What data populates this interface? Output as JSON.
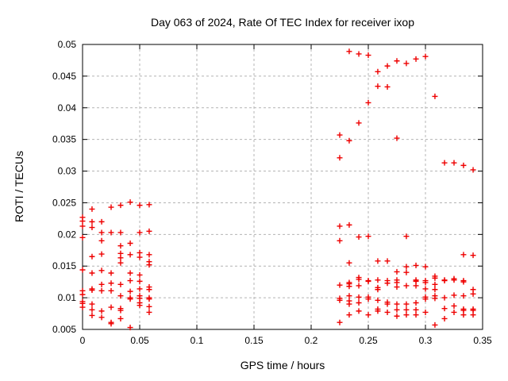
{
  "window": {
    "background": "#ffffff"
  },
  "chart_data": {
    "type": "scatter",
    "title": "Day 063 of 2024, Rate Of TEC Index for receiver ixop",
    "xlabel": "GPS time / hours",
    "ylabel": "ROTI / TECUs",
    "xlim": [
      0,
      0.35
    ],
    "ylim": [
      0.005,
      0.05
    ],
    "xticks": [
      0,
      0.05,
      0.1,
      0.15,
      0.2,
      0.25,
      0.3,
      0.35
    ],
    "xtick_labels": [
      "0",
      "0.05",
      "0.1",
      "0.15",
      "0.2",
      "0.25",
      "0.3",
      "0.35"
    ],
    "yticks": [
      0.005,
      0.01,
      0.015,
      0.02,
      0.025,
      0.03,
      0.035,
      0.04,
      0.045,
      0.05
    ],
    "ytick_labels": [
      "0.005",
      "0.01",
      "0.015",
      "0.02",
      "0.025",
      "0.03",
      "0.035",
      "0.04",
      "0.045",
      "0.05"
    ],
    "grid": true,
    "grid_color": "#b4b4b4",
    "frame_color": "#000000",
    "marker": {
      "shape": "plus",
      "color": "#ee0000",
      "size": 7,
      "stroke_width": 1.4
    },
    "series": [
      {
        "name": "ROTI",
        "points": [
          [
            0,
            0.0227
          ],
          [
            0,
            0.0221
          ],
          [
            0,
            0.0213
          ],
          [
            0,
            0.0195
          ],
          [
            0,
            0.0144
          ],
          [
            0,
            0.0111
          ],
          [
            0,
            0.0105
          ],
          [
            0,
            0.0094
          ],
          [
            0,
            0.0091
          ],
          [
            0,
            0.0085
          ],
          [
            0.0083,
            0.024
          ],
          [
            0.0083,
            0.022
          ],
          [
            0.0083,
            0.0211
          ],
          [
            0.0083,
            0.0165
          ],
          [
            0.0083,
            0.0139
          ],
          [
            0.0083,
            0.0114
          ],
          [
            0.0083,
            0.0112
          ],
          [
            0.0083,
            0.009
          ],
          [
            0.0083,
            0.0081
          ],
          [
            0.0083,
            0.0072
          ],
          [
            0.0167,
            0.022
          ],
          [
            0.0167,
            0.0203
          ],
          [
            0.0167,
            0.019
          ],
          [
            0.0167,
            0.0169
          ],
          [
            0.0167,
            0.0143
          ],
          [
            0.0167,
            0.0121
          ],
          [
            0.0167,
            0.0111
          ],
          [
            0.0167,
            0.0079
          ],
          [
            0.0167,
            0.0069
          ],
          [
            0.025,
            0.0243
          ],
          [
            0.025,
            0.0203
          ],
          [
            0.025,
            0.0139
          ],
          [
            0.025,
            0.0123
          ],
          [
            0.025,
            0.0111
          ],
          [
            0.025,
            0.0085
          ],
          [
            0.025,
            0.0061
          ],
          [
            0.025,
            0.0059
          ],
          [
            0.0333,
            0.0246
          ],
          [
            0.0333,
            0.0203
          ],
          [
            0.0333,
            0.0182
          ],
          [
            0.0333,
            0.017
          ],
          [
            0.0333,
            0.0163
          ],
          [
            0.0333,
            0.0155
          ],
          [
            0.0333,
            0.0121
          ],
          [
            0.0333,
            0.0103
          ],
          [
            0.0333,
            0.0083
          ],
          [
            0.0333,
            0.008
          ],
          [
            0.0333,
            0.0067
          ],
          [
            0.0417,
            0.0251
          ],
          [
            0.0417,
            0.0186
          ],
          [
            0.0417,
            0.0168
          ],
          [
            0.0417,
            0.0139
          ],
          [
            0.0417,
            0.0127
          ],
          [
            0.0417,
            0.011
          ],
          [
            0.0417,
            0.01
          ],
          [
            0.0417,
            0.0098
          ],
          [
            0.0417,
            0.0053
          ],
          [
            0.05,
            0.0246
          ],
          [
            0.05,
            0.0203
          ],
          [
            0.05,
            0.0171
          ],
          [
            0.05,
            0.0164
          ],
          [
            0.05,
            0.0136
          ],
          [
            0.05,
            0.0126
          ],
          [
            0.05,
            0.0114
          ],
          [
            0.05,
            0.0103
          ],
          [
            0.05,
            0.0099
          ],
          [
            0.05,
            0.0092
          ],
          [
            0.05,
            0.0088
          ],
          [
            0.0583,
            0.0247
          ],
          [
            0.0583,
            0.0205
          ],
          [
            0.0583,
            0.0168
          ],
          [
            0.0583,
            0.0157
          ],
          [
            0.0583,
            0.0152
          ],
          [
            0.0583,
            0.0117
          ],
          [
            0.0583,
            0.0113
          ],
          [
            0.0583,
            0.01
          ],
          [
            0.0583,
            0.0098
          ],
          [
            0.0583,
            0.0086
          ],
          [
            0.0583,
            0.0077
          ],
          [
            0.225,
            0.0357
          ],
          [
            0.225,
            0.0321
          ],
          [
            0.225,
            0.0213
          ],
          [
            0.225,
            0.019
          ],
          [
            0.225,
            0.012
          ],
          [
            0.225,
            0.0099
          ],
          [
            0.225,
            0.0096
          ],
          [
            0.225,
            0.0061
          ],
          [
            0.2333,
            0.0489
          ],
          [
            0.2333,
            0.0348
          ],
          [
            0.2333,
            0.0215
          ],
          [
            0.2333,
            0.0155
          ],
          [
            0.2333,
            0.0124
          ],
          [
            0.2333,
            0.0122
          ],
          [
            0.2333,
            0.0118
          ],
          [
            0.2333,
            0.0103
          ],
          [
            0.2333,
            0.0095
          ],
          [
            0.2333,
            0.009
          ],
          [
            0.2333,
            0.0073
          ],
          [
            0.2417,
            0.0485
          ],
          [
            0.2417,
            0.0376
          ],
          [
            0.2417,
            0.0196
          ],
          [
            0.2417,
            0.0132
          ],
          [
            0.2417,
            0.0129
          ],
          [
            0.2417,
            0.0119
          ],
          [
            0.2417,
            0.0101
          ],
          [
            0.2417,
            0.0092
          ],
          [
            0.2417,
            0.0079
          ],
          [
            0.25,
            0.0483
          ],
          [
            0.25,
            0.0408
          ],
          [
            0.25,
            0.0197
          ],
          [
            0.25,
            0.0127
          ],
          [
            0.25,
            0.0126
          ],
          [
            0.25,
            0.0101
          ],
          [
            0.25,
            0.0098
          ],
          [
            0.25,
            0.0073
          ],
          [
            0.2583,
            0.0457
          ],
          [
            0.2583,
            0.0434
          ],
          [
            0.2583,
            0.0158
          ],
          [
            0.2583,
            0.0128
          ],
          [
            0.2583,
            0.0116
          ],
          [
            0.2583,
            0.0113
          ],
          [
            0.2583,
            0.0096
          ],
          [
            0.2583,
            0.0082
          ],
          [
            0.2583,
            0.0079
          ],
          [
            0.2667,
            0.0466
          ],
          [
            0.2667,
            0.0433
          ],
          [
            0.2667,
            0.0158
          ],
          [
            0.2667,
            0.0127
          ],
          [
            0.2667,
            0.0123
          ],
          [
            0.2667,
            0.0093
          ],
          [
            0.2667,
            0.009
          ],
          [
            0.2667,
            0.0077
          ],
          [
            0.275,
            0.0474
          ],
          [
            0.275,
            0.0352
          ],
          [
            0.275,
            0.0141
          ],
          [
            0.275,
            0.0128
          ],
          [
            0.275,
            0.0124
          ],
          [
            0.275,
            0.0117
          ],
          [
            0.275,
            0.009
          ],
          [
            0.275,
            0.0081
          ],
          [
            0.275,
            0.0071
          ],
          [
            0.2833,
            0.047
          ],
          [
            0.2833,
            0.0197
          ],
          [
            0.2833,
            0.0149
          ],
          [
            0.2833,
            0.014
          ],
          [
            0.2833,
            0.0119
          ],
          [
            0.2833,
            0.009
          ],
          [
            0.2833,
            0.0081
          ],
          [
            0.2833,
            0.0073
          ],
          [
            0.2917,
            0.0477
          ],
          [
            0.2917,
            0.0151
          ],
          [
            0.2917,
            0.0128
          ],
          [
            0.2917,
            0.0126
          ],
          [
            0.2917,
            0.0119
          ],
          [
            0.2917,
            0.0092
          ],
          [
            0.2917,
            0.0081
          ],
          [
            0.2917,
            0.0073
          ],
          [
            0.3,
            0.0481
          ],
          [
            0.3,
            0.0149
          ],
          [
            0.3,
            0.0127
          ],
          [
            0.3,
            0.0124
          ],
          [
            0.3,
            0.0114
          ],
          [
            0.3,
            0.0101
          ],
          [
            0.3,
            0.0098
          ],
          [
            0.3,
            0.0077
          ],
          [
            0.3083,
            0.0418
          ],
          [
            0.3083,
            0.0134
          ],
          [
            0.3083,
            0.0131
          ],
          [
            0.3083,
            0.0121
          ],
          [
            0.3083,
            0.0113
          ],
          [
            0.3083,
            0.0103
          ],
          [
            0.3083,
            0.0099
          ],
          [
            0.3083,
            0.0057
          ],
          [
            0.3167,
            0.0313
          ],
          [
            0.3167,
            0.0128
          ],
          [
            0.3167,
            0.0127
          ],
          [
            0.3167,
            0.01
          ],
          [
            0.3167,
            0.0083
          ],
          [
            0.3167,
            0.0067
          ],
          [
            0.325,
            0.0313
          ],
          [
            0.325,
            0.013
          ],
          [
            0.325,
            0.0128
          ],
          [
            0.325,
            0.0104
          ],
          [
            0.325,
            0.0087
          ],
          [
            0.325,
            0.0077
          ],
          [
            0.3333,
            0.0309
          ],
          [
            0.3333,
            0.0168
          ],
          [
            0.3333,
            0.0127
          ],
          [
            0.3333,
            0.0125
          ],
          [
            0.3333,
            0.0103
          ],
          [
            0.3333,
            0.0082
          ],
          [
            0.3333,
            0.008
          ],
          [
            0.3333,
            0.0073
          ],
          [
            0.3417,
            0.0302
          ],
          [
            0.3417,
            0.0167
          ],
          [
            0.3417,
            0.0113
          ],
          [
            0.3417,
            0.0106
          ],
          [
            0.3417,
            0.0082
          ],
          [
            0.3417,
            0.008
          ],
          [
            0.3417,
            0.0073
          ]
        ]
      }
    ]
  }
}
